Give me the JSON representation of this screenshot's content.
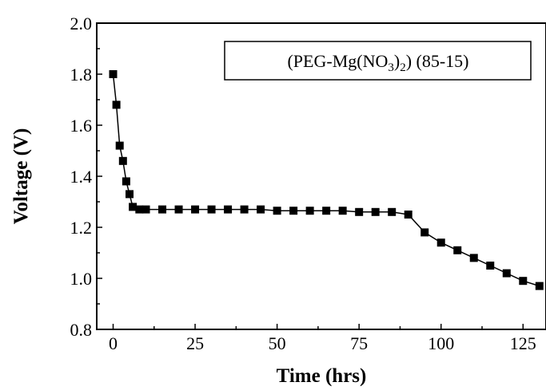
{
  "chart_data": {
    "type": "line",
    "title": "",
    "xlabel": "Time (hrs)",
    "ylabel": "Voltage (V)",
    "xlim": [
      -5,
      132
    ],
    "ylim": [
      0.8,
      2.0
    ],
    "x_ticks": [
      0,
      25,
      50,
      75,
      100,
      125
    ],
    "x_tick_labels": [
      "0",
      "25",
      "50",
      "75",
      "100",
      "125"
    ],
    "y_ticks": [
      0.8,
      1.0,
      1.2,
      1.4,
      1.6,
      1.8,
      2.0
    ],
    "y_tick_labels": [
      "0.8",
      "1.0",
      "1.2",
      "1.4",
      "1.6",
      "1.8",
      "2.0"
    ],
    "grid": false,
    "legend": {
      "placement": "top-right",
      "text_main": "(PEG-Mg(NO",
      "sub1": "3",
      "text_mid": ")",
      "sub2": "2",
      "text_end": ") (85-15)"
    },
    "series": [
      {
        "marker": "square",
        "color": "#000000",
        "x": [
          0,
          1,
          2,
          3,
          4,
          5,
          6,
          8,
          10,
          15,
          20,
          25,
          30,
          35,
          40,
          45,
          50,
          55,
          60,
          65,
          70,
          75,
          80,
          85,
          90,
          95,
          100,
          105,
          110,
          115,
          120,
          125,
          130
        ],
        "y": [
          1.8,
          1.68,
          1.52,
          1.46,
          1.38,
          1.33,
          1.28,
          1.27,
          1.27,
          1.27,
          1.27,
          1.27,
          1.27,
          1.27,
          1.27,
          1.27,
          1.265,
          1.265,
          1.265,
          1.265,
          1.265,
          1.26,
          1.26,
          1.26,
          1.25,
          1.18,
          1.14,
          1.11,
          1.08,
          1.05,
          1.02,
          0.99,
          0.97
        ]
      }
    ]
  }
}
